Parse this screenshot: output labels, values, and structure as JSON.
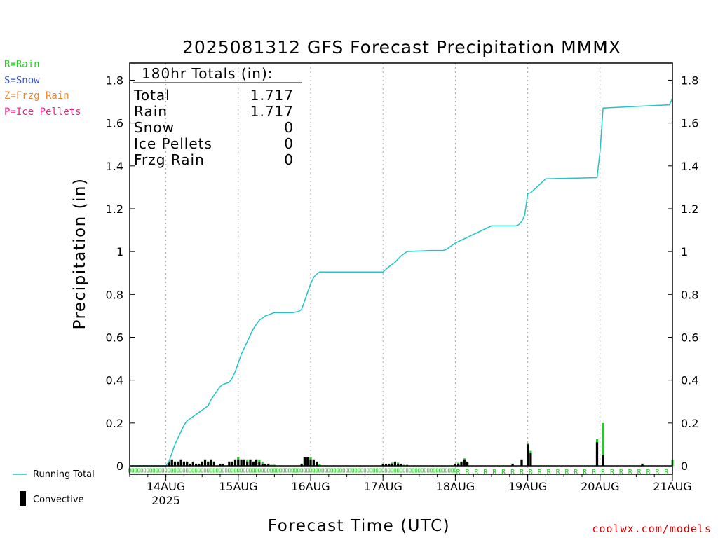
{
  "title": "2025081312 GFS Forecast Precipitation MMMX",
  "ptype_legend": [
    {
      "label": "R=Rain",
      "color": "#22cc22"
    },
    {
      "label": "S=Snow",
      "color": "#3355dd"
    },
    {
      "label": "Z=Frzg Rain",
      "color": "#ee8833"
    },
    {
      "label": "P=Ice Pellets",
      "color": "#ee2288"
    }
  ],
  "totals": {
    "header": "180hr Totals (in):",
    "rows": [
      {
        "label": "Total",
        "value": "1.717"
      },
      {
        "label": "Rain",
        "value": "1.717"
      },
      {
        "label": "Snow",
        "value": "0"
      },
      {
        "label": "Ice Pellets",
        "value": "0"
      },
      {
        "label": "Frzg Rain",
        "value": "0"
      }
    ]
  },
  "bottom_legend": {
    "running_total": "Running Total",
    "convective": "Convective"
  },
  "credit": "coolwx.com/models",
  "colors": {
    "running_total": "#22c4c4",
    "rain_bar": "#22cc22",
    "convective_bar": "#000000",
    "credit": "#cc0000"
  },
  "chart_data": {
    "type": "bar",
    "title": "2025081312 GFS Forecast Precipitation MMMX",
    "xlabel": "Forecast Time (UTC)",
    "ylabel": "Precipitation (in)",
    "ylim": [
      0,
      1.88
    ],
    "yticks": [
      0,
      0.2,
      0.4,
      0.6,
      0.8,
      1,
      1.2,
      1.4,
      1.6,
      1.8
    ],
    "ytick_labels": [
      "0",
      "0.2",
      "0.4",
      "0.6",
      "0.8",
      "1",
      "1.2",
      "1.4",
      "1.6",
      "1.8"
    ],
    "x_unit": "hours from 2025-08-13 12Z",
    "xlim": [
      0,
      180
    ],
    "xticks": [
      {
        "hour": 12,
        "label": "14AUG",
        "sub": "2025"
      },
      {
        "hour": 36,
        "label": "15AUG",
        "sub": ""
      },
      {
        "hour": 60,
        "label": "16AUG",
        "sub": ""
      },
      {
        "hour": 84,
        "label": "17AUG",
        "sub": ""
      },
      {
        "hour": 108,
        "label": "18AUG",
        "sub": ""
      },
      {
        "hour": 132,
        "label": "19AUG",
        "sub": ""
      },
      {
        "hour": 156,
        "label": "20AUG",
        "sub": ""
      },
      {
        "hour": 180,
        "label": "21AUG",
        "sub": ""
      }
    ],
    "grid": "vertical dotted at day boundaries",
    "running_total": {
      "name": "Running Total",
      "x": [
        0,
        12,
        13,
        14,
        15,
        16,
        17,
        18,
        19,
        20,
        21,
        22,
        23,
        24,
        25,
        26,
        27,
        28,
        30,
        31,
        33,
        34,
        35,
        36,
        37,
        38,
        39,
        40,
        41,
        42,
        43,
        44,
        45,
        46,
        47,
        48,
        50,
        54,
        56,
        57,
        58,
        59,
        60,
        61,
        62,
        63,
        64,
        66,
        72,
        80,
        84,
        86,
        88,
        90,
        92,
        100,
        104,
        105,
        106,
        108,
        111,
        120,
        125,
        126,
        127,
        128,
        129,
        130,
        131,
        132,
        133,
        138,
        154,
        155,
        156,
        157,
        179,
        180
      ],
      "values": [
        0,
        0,
        0.02,
        0.06,
        0.1,
        0.13,
        0.16,
        0.19,
        0.21,
        0.22,
        0.23,
        0.24,
        0.25,
        0.26,
        0.27,
        0.28,
        0.31,
        0.33,
        0.37,
        0.38,
        0.39,
        0.41,
        0.44,
        0.48,
        0.52,
        0.55,
        0.58,
        0.61,
        0.64,
        0.66,
        0.68,
        0.69,
        0.7,
        0.705,
        0.71,
        0.715,
        0.715,
        0.715,
        0.72,
        0.73,
        0.77,
        0.81,
        0.85,
        0.88,
        0.895,
        0.905,
        0.905,
        0.905,
        0.905,
        0.905,
        0.905,
        0.93,
        0.95,
        0.98,
        1.0,
        1.005,
        1.005,
        1.01,
        1.02,
        1.04,
        1.06,
        1.12,
        1.12,
        1.12,
        1.12,
        1.12,
        1.125,
        1.14,
        1.17,
        1.27,
        1.275,
        1.34,
        1.345,
        1.345,
        1.47,
        1.67,
        1.685,
        1.717
      ]
    },
    "series": [
      {
        "name": "Rain",
        "x": [
          13,
          14,
          15,
          16,
          17,
          18,
          19,
          20,
          21,
          22,
          23,
          24,
          25,
          26,
          27,
          28,
          30,
          31,
          33,
          34,
          35,
          36,
          37,
          38,
          39,
          40,
          41,
          42,
          43,
          44,
          45,
          46,
          47,
          48,
          57,
          58,
          59,
          60,
          61,
          62,
          63,
          84,
          85,
          86,
          87,
          88,
          89,
          90,
          91,
          92,
          108,
          109,
          110,
          111,
          112,
          127,
          130,
          132,
          133,
          155,
          157,
          170,
          180
        ],
        "values": [
          0.02,
          0.03,
          0.02,
          0.02,
          0.03,
          0.02,
          0.02,
          0.01,
          0.02,
          0.01,
          0.01,
          0.02,
          0.03,
          0.02,
          0.03,
          0.02,
          0.01,
          0.01,
          0.02,
          0.02,
          0.03,
          0.04,
          0.03,
          0.03,
          0.03,
          0.03,
          0.02,
          0.03,
          0.03,
          0.02,
          0.01,
          0.01,
          0.005,
          0.005,
          0.01,
          0.04,
          0.04,
          0.04,
          0.03,
          0.02,
          0.01,
          0.01,
          0.01,
          0.01,
          0.015,
          0.02,
          0.015,
          0.01,
          0.005,
          0.005,
          0.01,
          0.015,
          0.02,
          0.035,
          0.02,
          0.01,
          0.03,
          0.105,
          0.07,
          0.125,
          0.2,
          0.01,
          0.03
        ]
      },
      {
        "name": "Convective",
        "x": [
          13,
          14,
          15,
          16,
          17,
          18,
          19,
          20,
          21,
          22,
          23,
          24,
          25,
          26,
          27,
          28,
          30,
          31,
          33,
          34,
          35,
          36,
          37,
          38,
          39,
          40,
          41,
          42,
          43,
          44,
          45,
          46,
          57,
          58,
          59,
          60,
          61,
          62,
          84,
          85,
          86,
          87,
          88,
          89,
          90,
          108,
          109,
          110,
          111,
          112,
          127,
          130,
          132,
          133,
          155,
          157,
          170
        ],
        "values": [
          0.02,
          0.03,
          0.02,
          0.02,
          0.03,
          0.02,
          0.02,
          0.01,
          0.02,
          0.01,
          0.01,
          0.02,
          0.03,
          0.02,
          0.03,
          0.02,
          0.01,
          0.01,
          0.02,
          0.02,
          0.03,
          0.03,
          0.03,
          0.03,
          0.02,
          0.03,
          0.02,
          0.03,
          0.02,
          0.01,
          0.01,
          0.01,
          0.01,
          0.04,
          0.04,
          0.03,
          0.03,
          0.02,
          0.01,
          0.01,
          0.01,
          0.01,
          0.02,
          0.01,
          0.01,
          0.01,
          0.01,
          0.02,
          0.03,
          0.02,
          0.01,
          0.03,
          0.1,
          0.06,
          0.11,
          0.05,
          0.01
        ]
      }
    ],
    "ptype_marks": {
      "small_blocks_x_range": [
        0,
        108
      ],
      "letter_R_x_range": [
        109,
        180
      ]
    }
  }
}
